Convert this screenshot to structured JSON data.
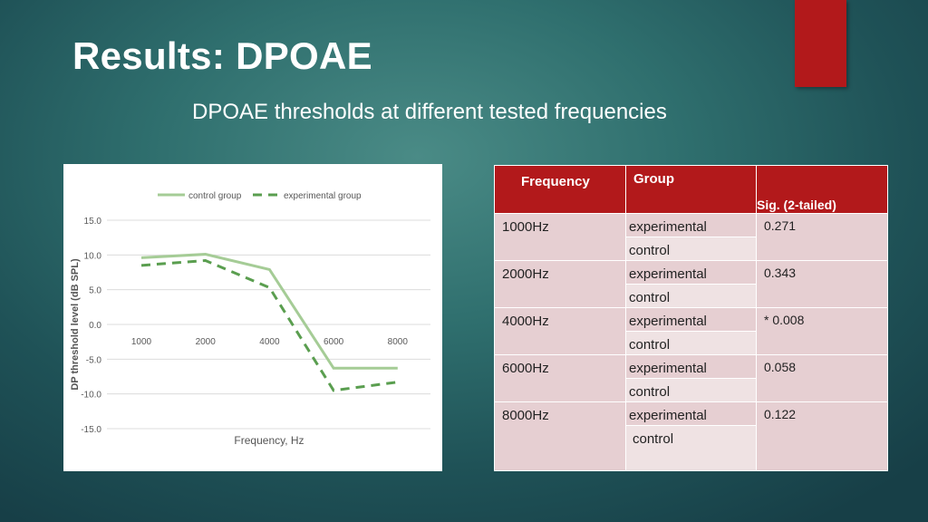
{
  "slide": {
    "title": "Results: DPOAE",
    "subtitle": "DPOAE thresholds at different tested frequencies"
  },
  "colors": {
    "background": "#2f6f6e",
    "accent": "#b2191b",
    "table_header": "#b2191b",
    "table_row": "#e6cfd2",
    "table_row_alt": "#efe2e3",
    "control_line": "#a5cc96",
    "experimental_line": "#5a9e4f"
  },
  "chart_data": {
    "type": "line",
    "categories": [
      "1000",
      "2000",
      "4000",
      "6000",
      "8000"
    ],
    "series": [
      {
        "name": "control group",
        "values": [
          9.6,
          10.1,
          7.9,
          -6.3,
          -6.3
        ],
        "style": "solid"
      },
      {
        "name": "experimental group",
        "values": [
          8.5,
          9.2,
          5.3,
          -9.5,
          -8.3
        ],
        "style": "dashed"
      }
    ],
    "yticks": [
      "15.0",
      "10.0",
      "5.0",
      "0.0",
      "-5.0",
      "-10.0",
      "-15.0"
    ],
    "ylim": [
      -15,
      15
    ],
    "xlabel": "Frequency, Hz",
    "ylabel": "DP threshold level (dB SPL)",
    "legend_position": "top",
    "grid": "horizontal"
  },
  "table": {
    "headers": {
      "frequency": "Frequency",
      "group": "Group",
      "sig": "Sig. (2-tailed)"
    },
    "rows": [
      {
        "frequency": "1000Hz",
        "experimental": "experimental",
        "control": "control",
        "sig": "0.271"
      },
      {
        "frequency": "2000Hz",
        "experimental": "experimental",
        "control": "control",
        "sig": "0.343"
      },
      {
        "frequency": "4000Hz",
        "experimental": "experimental",
        "control": "control",
        "sig": "* 0.008"
      },
      {
        "frequency": "6000Hz",
        "experimental": "experimental",
        "control": "control",
        "sig": "0.058"
      },
      {
        "frequency": "8000Hz",
        "experimental": "experimental",
        "control": "control",
        "sig": "0.122"
      }
    ]
  }
}
